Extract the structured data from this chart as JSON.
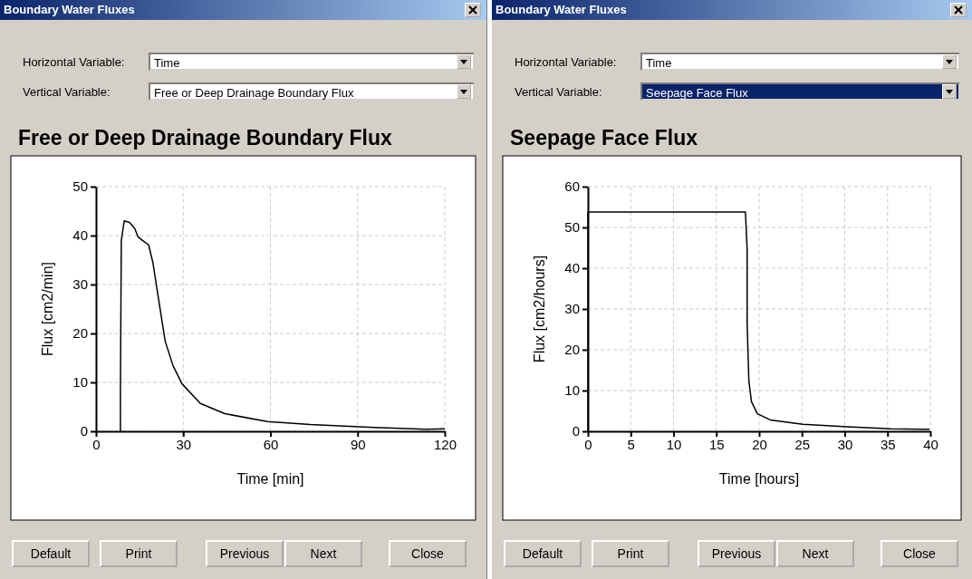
{
  "chart_data": [
    {
      "type": "line",
      "title": "Free or Deep Drainage Boundary Flux",
      "xlabel": "Time [min]",
      "ylabel": "Flux [cm2/min]",
      "xlim": [
        0,
        120
      ],
      "xticks": [
        0,
        30,
        60,
        90,
        120
      ],
      "ylim": [
        0,
        50
      ],
      "yticks": [
        0,
        10,
        20,
        30,
        40,
        50
      ],
      "grid": true,
      "marker": "none",
      "line_style": "solid",
      "series": [
        {
          "color": "#000000",
          "x": [
            8.4,
            8.4,
            8.7,
            9.7,
            11.5,
            13.3,
            14.4,
            16,
            18.1,
            19.6,
            21.2,
            23.8,
            26.5,
            29.6,
            35.9,
            44.3,
            59,
            73.7,
            95.7,
            113.6,
            120
          ],
          "values": [
            0,
            9,
            39,
            43,
            42.7,
            41.5,
            39.8,
            39,
            38.1,
            34.4,
            28.2,
            18.4,
            13.4,
            9.7,
            5.7,
            3.6,
            2,
            1.4,
            0.8,
            0.4,
            0.5
          ]
        }
      ],
      "annotations": [
        "Boundary Water Fluxes",
        "Horizontal Variable:",
        "Time",
        "Vertical Variable:",
        "Free or Deep Drainage Boundary Flux",
        "Default",
        "Print",
        "Previous",
        "Next",
        "Close"
      ]
    },
    {
      "type": "line",
      "title": "Seepage Face Flux",
      "xlabel": "Time [hours]",
      "ylabel": "Flux [cm2/hours]",
      "xlim": [
        0,
        40
      ],
      "xticks": [
        0,
        5,
        10,
        15,
        20,
        25,
        30,
        35,
        40
      ],
      "ylim": [
        0,
        60
      ],
      "yticks": [
        0,
        10,
        20,
        30,
        40,
        50,
        60
      ],
      "grid": true,
      "marker": "none",
      "line_style": "solid",
      "series": [
        {
          "color": "#000000",
          "x": [
            0,
            0,
            18.4,
            18.6,
            18.6,
            18.8,
            19.1,
            19.8,
            21.3,
            25.1,
            30.3,
            35.4,
            39.9
          ],
          "values": [
            0,
            53.8,
            53.8,
            44.6,
            26.5,
            12.4,
            7.3,
            4.3,
            2.8,
            1.7,
            1.1,
            0.6,
            0.5
          ]
        }
      ],
      "annotations": [
        "Boundary Water Fluxes",
        "Horizontal Variable:",
        "Time",
        "Vertical Variable:",
        "Seepage Face Flux",
        "Default",
        "Print",
        "Previous",
        "Next",
        "Close"
      ]
    }
  ]
}
